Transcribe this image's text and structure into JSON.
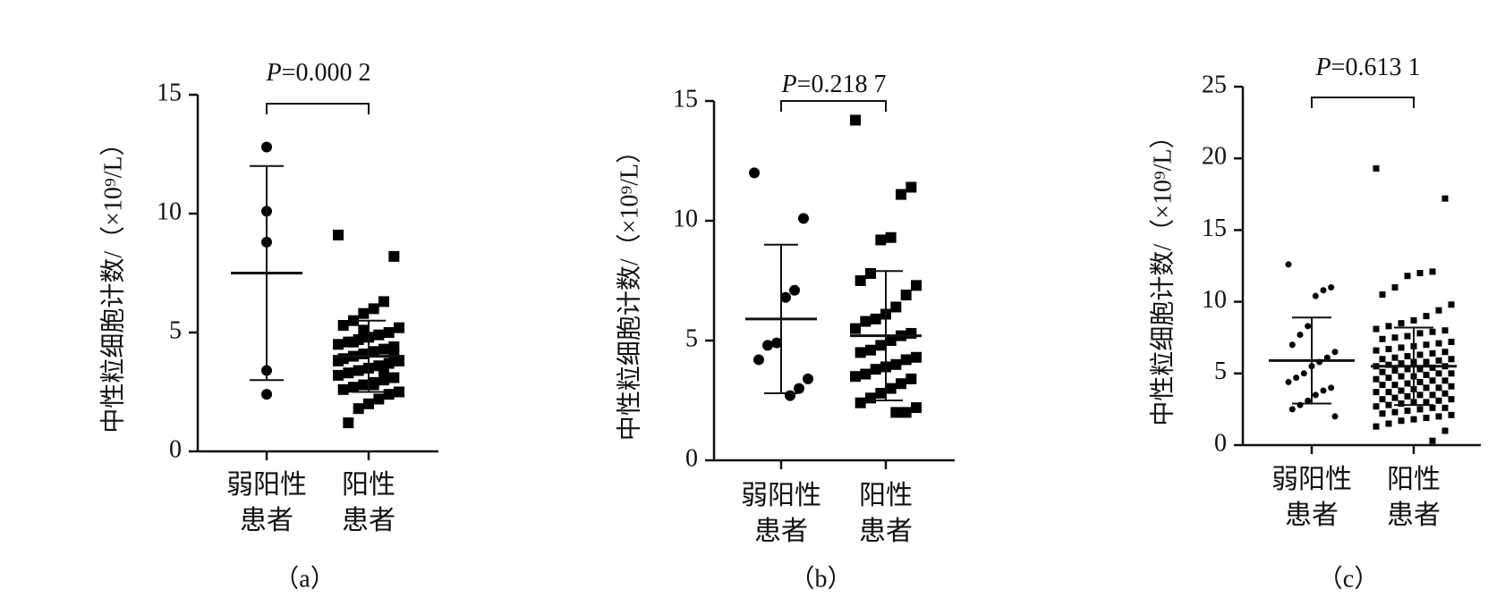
{
  "chart_data": [
    {
      "type": "dotplot",
      "label": "（a）",
      "ylabel": "中性粒细胞计数/（×10⁹/L）",
      "annotation": "P=0.000 2",
      "categories": [
        "弱阳性\n患者",
        "阳性\n患者"
      ],
      "ylim": [
        0,
        15
      ],
      "yticks": [
        0,
        5,
        10,
        15
      ],
      "groups": [
        {
          "marker": "circle",
          "mean": 7.5,
          "sd": 4.5,
          "values": [
            12.8,
            10.1,
            8.8,
            3.4,
            2.4
          ]
        },
        {
          "marker": "square",
          "mean": 4.0,
          "sd": 1.5,
          "values": [
            9.1,
            8.2,
            6.3,
            6.0,
            5.8,
            5.5,
            5.3,
            5.2,
            5.0,
            4.9,
            4.8,
            4.7,
            4.6,
            4.5,
            4.4,
            4.3,
            4.2,
            4.1,
            4.0,
            3.9,
            3.8,
            3.7,
            3.6,
            3.5,
            3.4,
            3.3,
            3.2,
            3.1,
            3.0,
            2.9,
            2.8,
            2.7,
            2.6,
            2.5,
            2.4,
            2.2,
            2.0,
            1.8,
            1.2,
            3.8,
            4.1,
            3.3,
            2.8,
            5.1,
            4.6
          ]
        }
      ]
    },
    {
      "type": "dotplot",
      "label": "（b）",
      "ylabel": "中性粒细胞计数/（×10⁹/L）",
      "annotation": "P=0.218 7",
      "categories": [
        "弱阳性\n患者",
        "阳性\n患者"
      ],
      "ylim": [
        0,
        15
      ],
      "yticks": [
        0,
        5,
        10,
        15
      ],
      "groups": [
        {
          "marker": "circle",
          "mean": 5.9,
          "sd": 3.1,
          "values": [
            12.0,
            10.1,
            7.1,
            6.8,
            4.9,
            4.8,
            4.2,
            3.4,
            3.0,
            2.7
          ]
        },
        {
          "marker": "square",
          "mean": 5.2,
          "sd": 2.7,
          "values": [
            14.2,
            11.4,
            11.1,
            9.3,
            9.2,
            7.8,
            7.5,
            7.3,
            6.9,
            6.4,
            6.1,
            5.9,
            5.8,
            5.5,
            5.3,
            5.2,
            5.0,
            4.8,
            4.6,
            4.5,
            4.3,
            4.2,
            4.0,
            3.9,
            3.8,
            3.6,
            3.5,
            3.4,
            3.2,
            3.0,
            2.8,
            2.6,
            2.4,
            2.2,
            2.0,
            2.0
          ]
        }
      ]
    },
    {
      "type": "dotplot",
      "label": "（c）",
      "ylabel": "中性粒细胞计数/（×10⁹/L）",
      "annotation": "P=0.613 1",
      "categories": [
        "弱阳性\n患者",
        "阳性\n患者"
      ],
      "ylim": [
        0,
        25
      ],
      "yticks": [
        0,
        5,
        10,
        15,
        20,
        25
      ],
      "groups": [
        {
          "marker": "circle",
          "mean": 5.9,
          "sd": 3.0,
          "values": [
            12.6,
            11.0,
            10.8,
            10.4,
            8.3,
            7.7,
            7.0,
            6.5,
            6.1,
            5.8,
            5.5,
            5.0,
            4.7,
            4.4,
            4.0,
            3.8,
            3.5,
            3.1,
            2.8,
            2.5,
            2.0
          ]
        },
        {
          "marker": "square",
          "mean": 5.5,
          "sd": 2.7,
          "values": [
            19.3,
            17.2,
            12.1,
            12.0,
            11.8,
            11.0,
            10.5,
            9.8,
            9.4,
            9.0,
            8.7,
            8.5,
            8.3,
            8.1,
            8.0,
            7.9,
            7.8,
            7.6,
            7.5,
            7.4,
            7.2,
            7.1,
            7.0,
            6.9,
            6.8,
            6.7,
            6.6,
            6.5,
            6.4,
            6.3,
            6.2,
            6.1,
            6.0,
            6.0,
            5.9,
            5.8,
            5.8,
            5.7,
            5.6,
            5.5,
            5.5,
            5.4,
            5.3,
            5.3,
            5.2,
            5.1,
            5.0,
            5.0,
            4.9,
            4.8,
            4.8,
            4.7,
            4.6,
            4.5,
            4.5,
            4.4,
            4.3,
            4.2,
            4.2,
            4.1,
            4.0,
            4.0,
            3.9,
            3.8,
            3.7,
            3.7,
            3.6,
            3.5,
            3.5,
            3.4,
            3.3,
            3.2,
            3.2,
            3.1,
            3.0,
            3.0,
            2.9,
            2.8,
            2.7,
            2.6,
            2.6,
            2.5,
            2.4,
            2.3,
            2.2,
            2.1,
            2.0,
            1.9,
            1.8,
            1.7,
            1.5,
            1.3,
            1.0,
            0.3
          ]
        }
      ]
    }
  ]
}
